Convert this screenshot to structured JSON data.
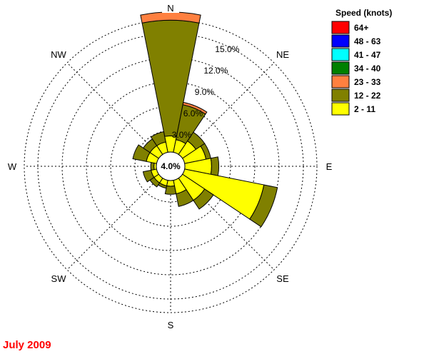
{
  "chart_data": {
    "type": "wind-rose",
    "footer_label": "July 2009",
    "legend_title": "Speed (knots)",
    "speed_bins": [
      {
        "label": "2 - 11",
        "color": "#ffff00"
      },
      {
        "label": "12 - 22",
        "color": "#808000"
      },
      {
        "label": "23 - 33",
        "color": "#ff8040"
      },
      {
        "label": "34 - 40",
        "color": "#008000"
      },
      {
        "label": "41 - 47",
        "color": "#00ffff"
      },
      {
        "label": "48 - 63",
        "color": "#0000ff"
      },
      {
        "label": "64+",
        "color": "#ff0000"
      }
    ],
    "ring_labels": [
      "3.0%",
      "6.0%",
      "9.0%",
      "12.0%",
      "15.0%"
    ],
    "ring_values": [
      3,
      6,
      9,
      12,
      15
    ],
    "calm_label": "4.0%",
    "calm_value": 4.0,
    "directions": [
      "N",
      "NNE",
      "NE",
      "ENE",
      "E",
      "ESE",
      "SE",
      "SSE",
      "S",
      "SSW",
      "SW",
      "WSW",
      "W",
      "WNW",
      "NW",
      "NNW"
    ],
    "compass_labels": [
      "N",
      "NE",
      "E",
      "SE",
      "S",
      "SW",
      "W",
      "NW"
    ],
    "frequencies_cumulative_percent": [
      [
        2.0,
        16.3,
        17.3,
        17.3,
        17.3,
        17.3,
        17.3
      ],
      [
        1.6,
        6.0,
        6.3,
        6.3,
        6.3,
        6.3,
        6.3
      ],
      [
        2.0,
        3.3,
        3.3,
        3.3,
        3.3,
        3.3,
        3.3
      ],
      [
        2.7,
        3.3,
        3.3,
        3.3,
        3.3,
        3.3,
        3.3
      ],
      [
        3.3,
        4.2,
        4.2,
        4.2,
        4.2,
        4.2,
        4.2
      ],
      [
        10.0,
        11.7,
        11.7,
        11.7,
        11.7,
        11.7,
        11.7
      ],
      [
        3.3,
        4.6,
        4.6,
        4.6,
        4.6,
        4.6,
        4.6
      ],
      [
        1.7,
        3.3,
        3.3,
        3.3,
        3.3,
        3.3,
        3.3
      ],
      [
        0.7,
        1.7,
        1.7,
        1.7,
        1.7,
        1.7,
        1.7
      ],
      [
        0.7,
        1.0,
        1.0,
        1.0,
        1.0,
        1.0,
        1.0
      ],
      [
        0.7,
        1.3,
        1.3,
        1.3,
        1.3,
        1.3,
        1.3
      ],
      [
        0.7,
        1.7,
        1.7,
        1.7,
        1.7,
        1.7,
        1.7
      ],
      [
        0.3,
        0.7,
        0.7,
        0.7,
        0.7,
        0.7,
        0.7
      ],
      [
        1.3,
        3.0,
        3.0,
        3.0,
        3.0,
        3.0,
        3.0
      ],
      [
        1.3,
        2.3,
        2.3,
        2.3,
        2.3,
        2.3,
        2.3
      ],
      [
        1.3,
        2.6,
        2.6,
        2.6,
        2.6,
        2.6,
        2.6
      ]
    ]
  }
}
